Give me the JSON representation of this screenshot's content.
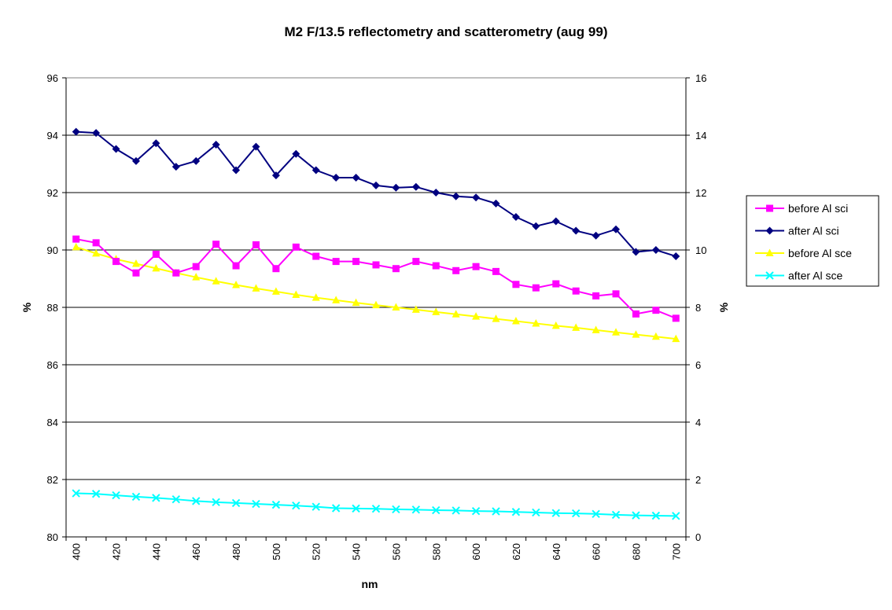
{
  "chart_data": {
    "type": "line",
    "title": "M2 F/13.5 reflectometry and scatterometry (aug 99)",
    "xlabel": "nm",
    "ylabel": "%",
    "y2label": "%",
    "x": [
      400,
      410,
      420,
      430,
      440,
      450,
      460,
      470,
      480,
      490,
      500,
      510,
      520,
      530,
      540,
      550,
      560,
      570,
      580,
      590,
      600,
      610,
      620,
      630,
      640,
      650,
      660,
      670,
      680,
      690,
      700
    ],
    "x_ticks": [
      "400",
      "420",
      "440",
      "460",
      "480",
      "500",
      "520",
      "540",
      "560",
      "580",
      "600",
      "620",
      "640",
      "660",
      "680",
      "700"
    ],
    "y_ticks": [
      "80",
      "82",
      "84",
      "86",
      "88",
      "90",
      "92",
      "94",
      "96"
    ],
    "y2_ticks": [
      "0",
      "2",
      "4",
      "6",
      "8",
      "10",
      "12",
      "14",
      "16"
    ],
    "ylim": [
      80,
      96
    ],
    "y2lim": [
      0,
      16
    ],
    "grid": "horizontal major gridlines",
    "legend_position": "right",
    "series": [
      {
        "name": "before Al sci",
        "axis": "left",
        "color": "#ff00ff",
        "marker": "square",
        "values": [
          90.38,
          90.25,
          89.6,
          89.2,
          89.85,
          89.2,
          89.42,
          90.2,
          89.45,
          90.18,
          89.35,
          90.1,
          89.78,
          89.6,
          89.6,
          89.48,
          89.35,
          89.6,
          89.45,
          89.28,
          89.42,
          89.25,
          88.8,
          88.68,
          88.82,
          88.57,
          88.4,
          88.47,
          87.77,
          87.9,
          87.62
        ]
      },
      {
        "name": "after Al sci",
        "axis": "left",
        "color": "#000080",
        "marker": "diamond",
        "values": [
          94.12,
          94.08,
          93.52,
          93.1,
          93.72,
          92.9,
          93.1,
          93.67,
          92.78,
          93.6,
          92.6,
          93.35,
          92.78,
          92.52,
          92.52,
          92.25,
          92.17,
          92.2,
          92.0,
          91.87,
          91.83,
          91.62,
          91.15,
          90.83,
          91.0,
          90.67,
          90.5,
          90.72,
          89.93,
          90.0,
          89.78
        ]
      },
      {
        "name": "before Al sce",
        "axis": "right",
        "color": "#ffff00",
        "marker": "triangle",
        "values": [
          10.1,
          9.88,
          9.68,
          9.52,
          9.36,
          9.2,
          9.05,
          8.91,
          8.78,
          8.66,
          8.55,
          8.44,
          8.34,
          8.25,
          8.16,
          8.08,
          8.0,
          7.92,
          7.84,
          7.76,
          7.68,
          7.6,
          7.52,
          7.44,
          7.36,
          7.29,
          7.21,
          7.13,
          7.05,
          6.98,
          6.9
        ]
      },
      {
        "name": "after Al sce",
        "axis": "right",
        "color": "#00ffff",
        "marker": "x",
        "values": [
          1.52,
          1.5,
          1.45,
          1.4,
          1.36,
          1.31,
          1.25,
          1.21,
          1.18,
          1.15,
          1.12,
          1.09,
          1.05,
          1.0,
          0.99,
          0.98,
          0.96,
          0.95,
          0.93,
          0.92,
          0.9,
          0.89,
          0.87,
          0.85,
          0.83,
          0.82,
          0.8,
          0.77,
          0.75,
          0.74,
          0.73
        ]
      }
    ]
  }
}
